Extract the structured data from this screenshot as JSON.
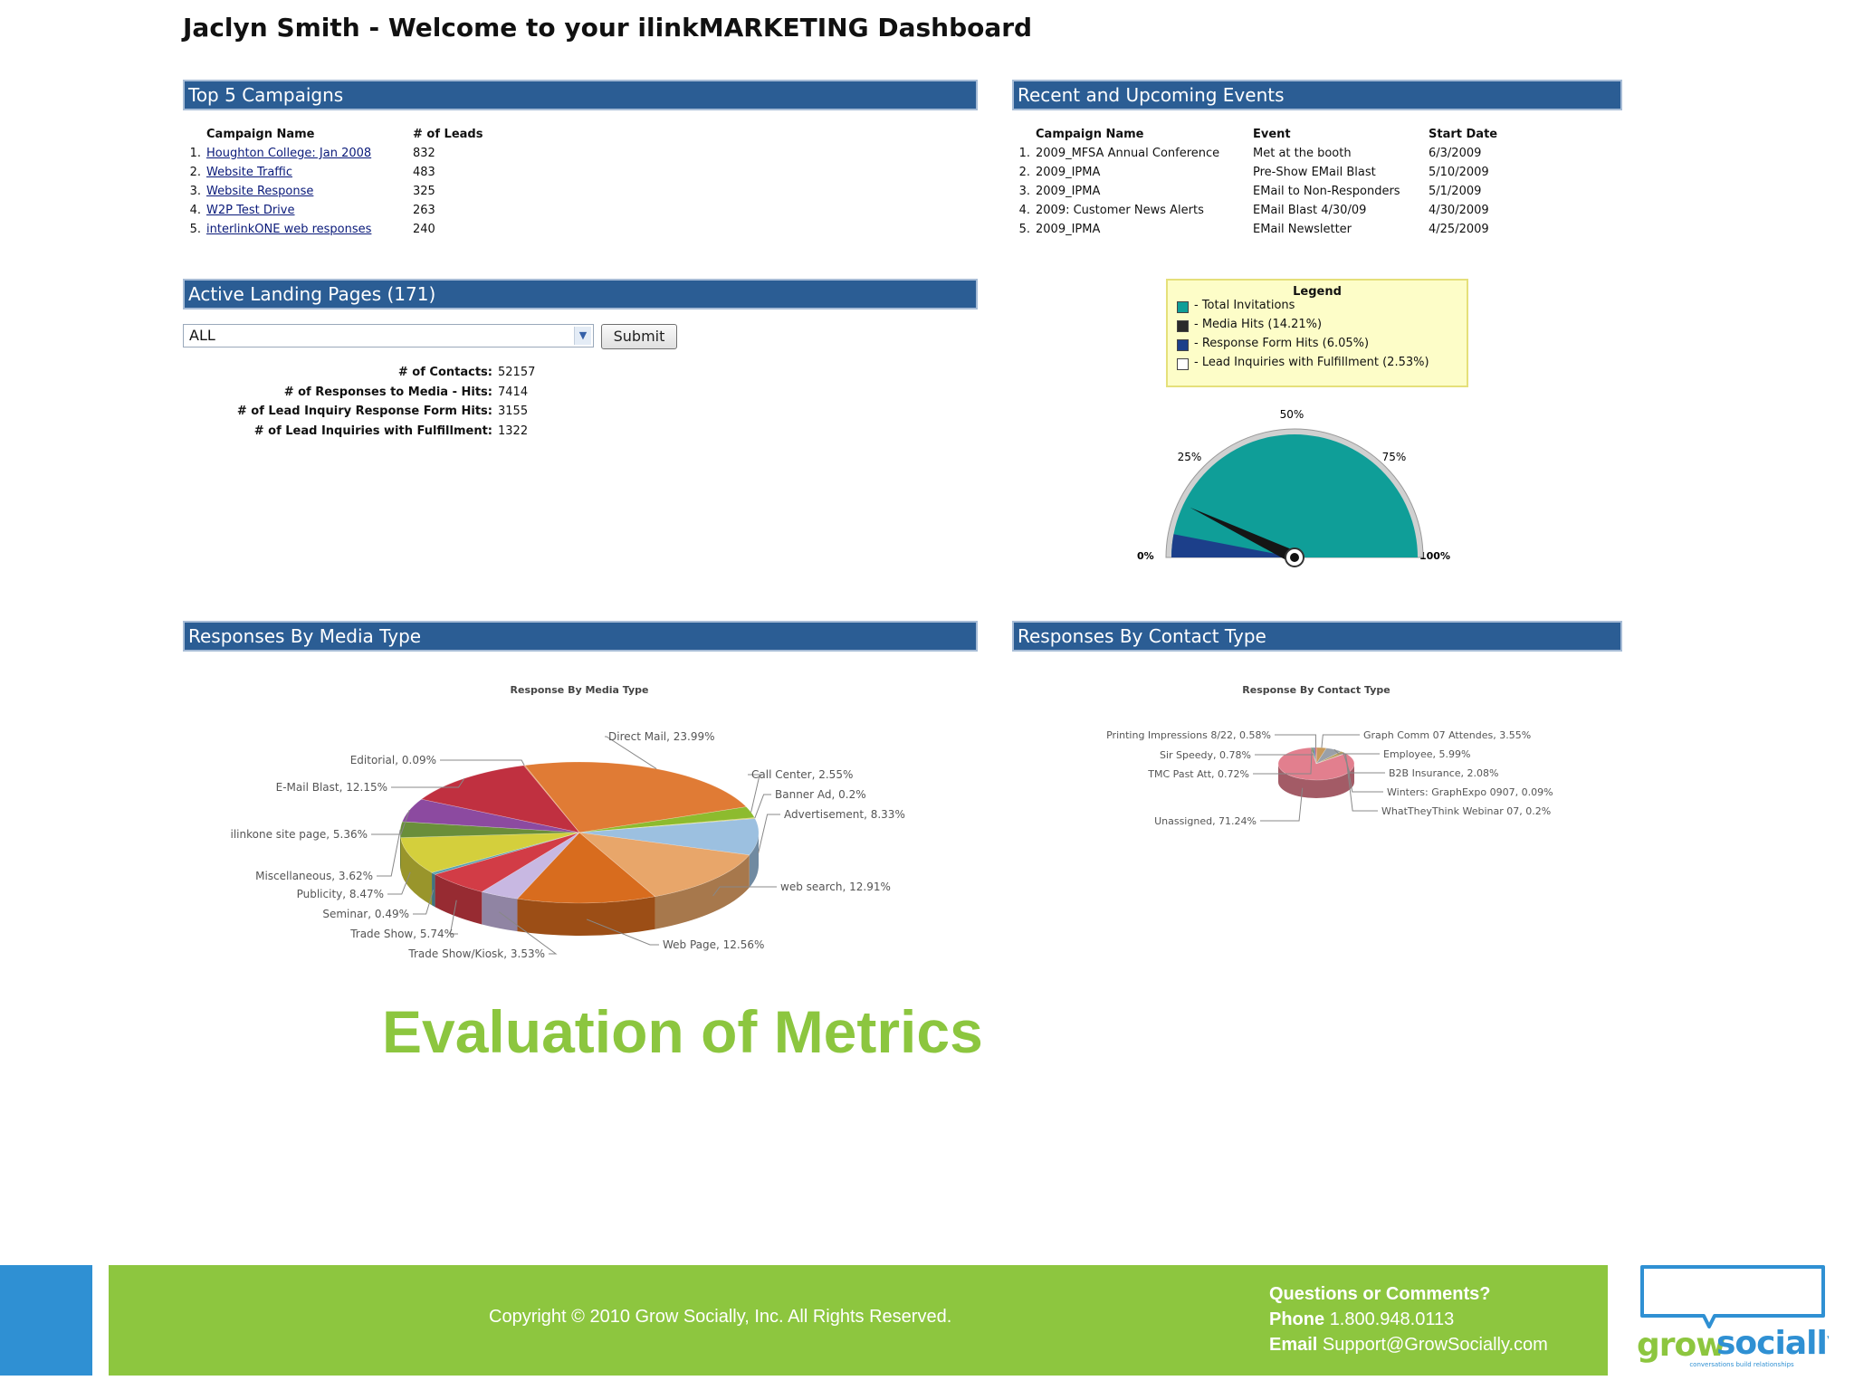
{
  "page_title": "Jaclyn Smith - Welcome to your ilinkMARKETING Dashboard",
  "top_campaigns": {
    "title": "Top 5 Campaigns",
    "headers": [
      "Campaign Name",
      "# of Leads"
    ],
    "rows": [
      {
        "n": "1.",
        "name": "Houghton College: Jan 2008",
        "leads": "832"
      },
      {
        "n": "2.",
        "name": "Website Traffic",
        "leads": "483"
      },
      {
        "n": "3.",
        "name": "Website Response",
        "leads": "325"
      },
      {
        "n": "4.",
        "name": "W2P Test Drive",
        "leads": "263"
      },
      {
        "n": "5.",
        "name": "interlinkONE web responses",
        "leads": "240"
      }
    ]
  },
  "events": {
    "title": "Recent and Upcoming Events",
    "headers": [
      "Campaign Name",
      "Event",
      "Start Date"
    ],
    "rows": [
      {
        "n": "1.",
        "name": "2009_MFSA Annual Conference",
        "event": "Met at the booth",
        "date": "6/3/2009"
      },
      {
        "n": "2.",
        "name": "2009_IPMA",
        "event": "Pre-Show EMail Blast",
        "date": "5/10/2009"
      },
      {
        "n": "3.",
        "name": "2009_IPMA",
        "event": "EMail to Non-Responders",
        "date": "5/1/2009"
      },
      {
        "n": "4.",
        "name": "2009: Customer News Alerts",
        "event": "EMail Blast 4/30/09",
        "date": "4/30/2009"
      },
      {
        "n": "5.",
        "name": "2009_IPMA",
        "event": "EMail Newsletter",
        "date": "4/25/2009"
      }
    ]
  },
  "landing": {
    "title": "Active Landing Pages (171)",
    "select_value": "ALL",
    "submit_label": "Submit",
    "stats": [
      {
        "label": "# of Contacts:",
        "value": "52157"
      },
      {
        "label": "# of Responses to Media - Hits:",
        "value": "7414"
      },
      {
        "label": "# of Lead Inquiry Response Form Hits:",
        "value": "3155"
      },
      {
        "label": "# of Lead Inquiries with Fulfillment:",
        "value": "1322"
      }
    ]
  },
  "legend": {
    "title": "Legend",
    "items": [
      {
        "label": "- Total Invitations",
        "color": "#0f9e98"
      },
      {
        "label": "- Media Hits (14.21%)",
        "color": "#2a2a2a"
      },
      {
        "label": "- Response Form Hits (6.05%)",
        "color": "#1c3f8a"
      },
      {
        "label": "- Lead Inquiries with Fulfillment (2.53%)",
        "color": "#ffffff"
      }
    ]
  },
  "gauge": {
    "labels": {
      "p0": "0%",
      "p25": "25%",
      "p50": "50%",
      "p75": "75%",
      "p100": "100%"
    },
    "needle_fraction": 0.142,
    "fill_color": "#0f9e98"
  },
  "media": {
    "title": "Responses By Media Type",
    "chart_title": "Response By Media Type"
  },
  "contact_type": {
    "title": "Responses By Contact Type",
    "chart_title": "Response By Contact Type"
  },
  "chart_data": [
    {
      "type": "pie",
      "title": "Response By Media Type",
      "slices": [
        {
          "label": "Direct Mail",
          "value": 23.99,
          "text": "Direct Mail, 23.99%",
          "color": "#e07b35"
        },
        {
          "label": "Call Center",
          "value": 2.55,
          "text": "Call Center, 2.55%",
          "color": "#8dbb2e"
        },
        {
          "label": "Banner Ad",
          "value": 0.2,
          "text": "Banner Ad, 0.2%",
          "color": "#d6c84a"
        },
        {
          "label": "Advertisement",
          "value": 8.33,
          "text": "Advertisement, 8.33%",
          "color": "#9cc0e0"
        },
        {
          "label": "web search",
          "value": 12.91,
          "text": "web search, 12.91%",
          "color": "#e8a66a"
        },
        {
          "label": "Web Page",
          "value": 12.56,
          "text": "Web Page, 12.56%",
          "color": "#d86c1e"
        },
        {
          "label": "Trade Show/Kiosk",
          "value": 3.53,
          "text": "Trade Show/Kiosk, 3.53%",
          "color": "#c8b8e2"
        },
        {
          "label": "Trade Show",
          "value": 5.74,
          "text": "Trade Show, 5.74%",
          "color": "#d23c46"
        },
        {
          "label": "Seminar",
          "value": 0.49,
          "text": "Seminar, 0.49%",
          "color": "#5aa0b0"
        },
        {
          "label": "Publicity",
          "value": 8.47,
          "text": "Publicity, 8.47%",
          "color": "#d4cf3c"
        },
        {
          "label": "Miscellaneous",
          "value": 3.62,
          "text": "Miscellaneous, 3.62%",
          "color": "#6a8e3a"
        },
        {
          "label": "ilinkone site page",
          "value": 5.36,
          "text": "ilinkone site page, 5.36%",
          "color": "#8c4aa0"
        },
        {
          "label": "E-Mail Blast",
          "value": 12.15,
          "text": "E-Mail Blast, 12.15%",
          "color": "#c03040"
        },
        {
          "label": "Editorial",
          "value": 0.09,
          "text": "Editorial, 0.09%",
          "color": "#e07b35"
        }
      ]
    },
    {
      "type": "pie",
      "title": "Response By Contact Type",
      "slices": [
        {
          "label": "Graph Comm 07 Attendes",
          "value": 3.55,
          "text": "Graph Comm 07 Attendes, 3.55%",
          "color": "#c89a5a"
        },
        {
          "label": "Employee",
          "value": 5.99,
          "text": "Employee, 5.99%",
          "color": "#9aa0a8"
        },
        {
          "label": "B2B Insurance",
          "value": 2.08,
          "text": "B2B Insurance, 2.08%",
          "color": "#b8a060"
        },
        {
          "label": "Winters: GraphExpo 0907",
          "value": 0.09,
          "text": "Winters: GraphExpo 0907, 0.09%",
          "color": "#d4c050"
        },
        {
          "label": "WhatTheyThink Webinar 07",
          "value": 0.2,
          "text": "WhatTheyThink Webinar 07, 0.2%",
          "color": "#8cb0d0"
        },
        {
          "label": "Unassigned",
          "value": 71.24,
          "text": "Unassigned, 71.24%",
          "color": "#e27f8e"
        },
        {
          "label": "TMC Past Att",
          "value": 0.72,
          "text": "TMC Past Att, 0.72%",
          "color": "#7ab060"
        },
        {
          "label": "Sir Speedy",
          "value": 0.78,
          "text": "Sir Speedy, 0.78%",
          "color": "#6080c0"
        },
        {
          "label": "Printing Impressions 8/22",
          "value": 0.58,
          "text": "Printing Impressions 8/22, 0.58%",
          "color": "#d06060"
        }
      ]
    }
  ],
  "slide_heading": "Evaluation of Metrics",
  "footer": {
    "copyright": "Copyright © 2010 Grow Socially, Inc. All Rights Reserved.",
    "questions": "Questions or Comments?",
    "phone_label": "Phone",
    "phone": "1.800.948.0113",
    "email_label": "Email",
    "email": "Support@GrowSocially.com"
  },
  "logo": {
    "word1": "grow",
    "word2": "socially",
    "tagline": "conversations build relationships",
    "color1": "#8dc63f",
    "color2": "#2f90d3"
  }
}
